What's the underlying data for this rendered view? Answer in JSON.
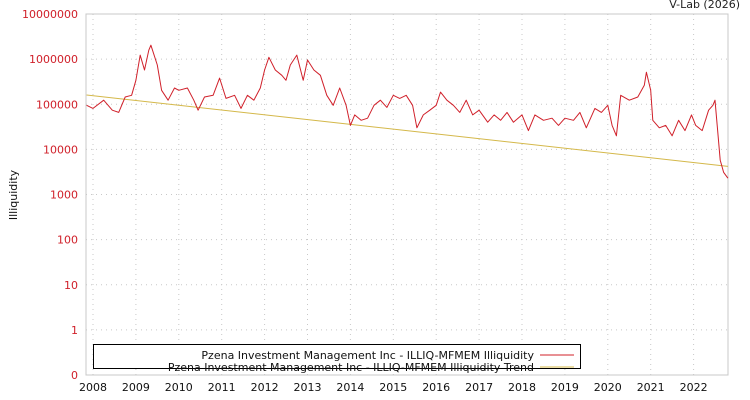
{
  "credit": "V-Lab (2026)",
  "chart_data": {
    "type": "line",
    "title": "",
    "xlabel": "",
    "ylabel": "Illiquidity",
    "yscale": "log",
    "ylim": [
      0.1,
      10000000
    ],
    "xlim": [
      2007.85,
      2022.8
    ],
    "grid": true,
    "y_ticks": [
      {
        "label": "0",
        "value": 0.1
      },
      {
        "label": "1",
        "value": 1
      },
      {
        "label": "10",
        "value": 10
      },
      {
        "label": "100",
        "value": 100
      },
      {
        "label": "1000",
        "value": 1000
      },
      {
        "label": "10000",
        "value": 10000
      },
      {
        "label": "100000",
        "value": 100000
      },
      {
        "label": "1000000",
        "value": 1000000
      },
      {
        "label": "10000000",
        "value": 10000000
      }
    ],
    "x_ticks": [
      "2008",
      "2009",
      "2010",
      "2011",
      "2012",
      "2013",
      "2014",
      "2015",
      "2016",
      "2017",
      "2018",
      "2019",
      "2020",
      "2021",
      "2022"
    ],
    "legend_position": "bottom-left",
    "series": [
      {
        "name": "Pzena Investment Management Inc - ILLIQ-MFMEM Illiquidity",
        "color": "#d0202a",
        "points": [
          [
            2007.85,
            95000
          ],
          [
            2008.0,
            81000
          ],
          [
            2008.25,
            123000
          ],
          [
            2008.45,
            74000
          ],
          [
            2008.6,
            66000
          ],
          [
            2008.75,
            145000
          ],
          [
            2008.9,
            158000
          ],
          [
            2009.0,
            339000
          ],
          [
            2009.1,
            1230000
          ],
          [
            2009.2,
            575000
          ],
          [
            2009.3,
            1580000
          ],
          [
            2009.35,
            2040000
          ],
          [
            2009.5,
            741000
          ],
          [
            2009.6,
            204000
          ],
          [
            2009.75,
            123000
          ],
          [
            2009.9,
            229000
          ],
          [
            2010.0,
            204000
          ],
          [
            2010.2,
            229000
          ],
          [
            2010.35,
            123000
          ],
          [
            2010.45,
            74000
          ],
          [
            2010.6,
            145000
          ],
          [
            2010.8,
            158000
          ],
          [
            2010.95,
            380000
          ],
          [
            2011.1,
            135000
          ],
          [
            2011.3,
            158000
          ],
          [
            2011.45,
            81000
          ],
          [
            2011.6,
            158000
          ],
          [
            2011.75,
            123000
          ],
          [
            2011.9,
            229000
          ],
          [
            2012.0,
            575000
          ],
          [
            2012.1,
            1100000
          ],
          [
            2012.25,
            575000
          ],
          [
            2012.4,
            437000
          ],
          [
            2012.5,
            339000
          ],
          [
            2012.6,
            741000
          ],
          [
            2012.75,
            1230000
          ],
          [
            2012.9,
            339000
          ],
          [
            2013.0,
            955000
          ],
          [
            2013.15,
            575000
          ],
          [
            2013.3,
            437000
          ],
          [
            2013.45,
            158000
          ],
          [
            2013.6,
            95000
          ],
          [
            2013.75,
            229000
          ],
          [
            2013.9,
            95000
          ],
          [
            2014.0,
            34000
          ],
          [
            2014.1,
            58000
          ],
          [
            2014.25,
            44000
          ],
          [
            2014.4,
            49000
          ],
          [
            2014.55,
            95000
          ],
          [
            2014.7,
            123000
          ],
          [
            2014.85,
            85000
          ],
          [
            2015.0,
            158000
          ],
          [
            2015.15,
            135000
          ],
          [
            2015.3,
            158000
          ],
          [
            2015.45,
            95000
          ],
          [
            2015.55,
            30000
          ],
          [
            2015.7,
            58000
          ],
          [
            2015.85,
            74000
          ],
          [
            2016.0,
            95000
          ],
          [
            2016.1,
            186000
          ],
          [
            2016.25,
            123000
          ],
          [
            2016.4,
            95000
          ],
          [
            2016.55,
            66000
          ],
          [
            2016.7,
            123000
          ],
          [
            2016.85,
            58000
          ],
          [
            2017.0,
            74000
          ],
          [
            2017.2,
            40000
          ],
          [
            2017.35,
            58000
          ],
          [
            2017.5,
            44000
          ],
          [
            2017.65,
            66000
          ],
          [
            2017.8,
            40000
          ],
          [
            2018.0,
            58000
          ],
          [
            2018.15,
            26000
          ],
          [
            2018.3,
            58000
          ],
          [
            2018.5,
            44000
          ],
          [
            2018.7,
            49000
          ],
          [
            2018.85,
            34000
          ],
          [
            2019.0,
            49000
          ],
          [
            2019.2,
            44000
          ],
          [
            2019.35,
            66000
          ],
          [
            2019.5,
            30000
          ],
          [
            2019.7,
            81000
          ],
          [
            2019.85,
            66000
          ],
          [
            2020.0,
            95000
          ],
          [
            2020.1,
            34000
          ],
          [
            2020.2,
            20000
          ],
          [
            2020.3,
            158000
          ],
          [
            2020.5,
            123000
          ],
          [
            2020.7,
            145000
          ],
          [
            2020.85,
            263000
          ],
          [
            2020.9,
            513000
          ],
          [
            2021.0,
            204000
          ],
          [
            2021.05,
            44000
          ],
          [
            2021.2,
            30000
          ],
          [
            2021.35,
            34000
          ],
          [
            2021.5,
            20000
          ],
          [
            2021.65,
            44000
          ],
          [
            2021.8,
            26000
          ],
          [
            2021.95,
            58000
          ],
          [
            2022.05,
            34000
          ],
          [
            2022.2,
            26000
          ],
          [
            2022.35,
            74000
          ],
          [
            2022.45,
            95000
          ],
          [
            2022.5,
            123000
          ],
          [
            2022.55,
            34000
          ],
          [
            2022.62,
            5800
          ],
          [
            2022.7,
            3100
          ],
          [
            2022.8,
            2300
          ]
        ]
      },
      {
        "name": "Pzena Investment Management Inc - ILLIQ-MFMEM Illiquidity Trend",
        "color": "#d4b84a",
        "points": [
          [
            2007.85,
            160000
          ],
          [
            2022.8,
            4200
          ]
        ]
      }
    ]
  }
}
